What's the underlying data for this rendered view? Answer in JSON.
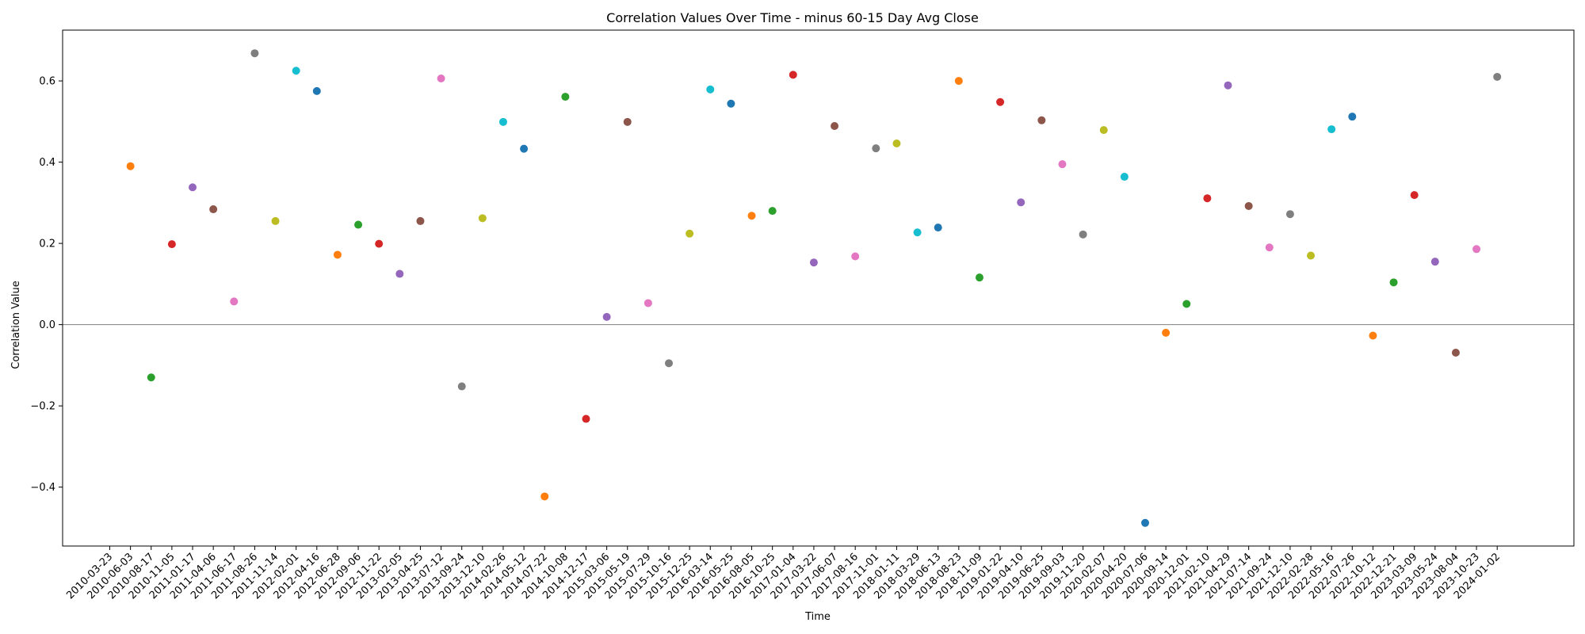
{
  "chart_data": {
    "type": "scatter",
    "title": "Correlation Values Over Time - minus 60-15 Day Avg Close",
    "xlabel": "Time",
    "ylabel": "Correlation Value",
    "ylim": [
      -0.545,
      0.725
    ],
    "yticks": [
      -0.4,
      -0.2,
      0.0,
      0.2,
      0.4,
      0.6
    ],
    "ytick_labels": [
      "−0.4",
      "−0.2",
      "0.0",
      "0.2",
      "0.4",
      "0.6"
    ],
    "grid": false,
    "legend": "none",
    "zero_line": true,
    "zero_line_color": "#808080",
    "palette": [
      "#1f77b4",
      "#ff7f0e",
      "#2ca02c",
      "#d62728",
      "#9467bd",
      "#8c564b",
      "#e377c2",
      "#7f7f7f",
      "#bcbd22",
      "#17becf"
    ],
    "x": [
      "2010-03-23",
      "2010-06-03",
      "2010-08-17",
      "2010-11-05",
      "2011-01-17",
      "2011-04-06",
      "2011-06-17",
      "2011-08-26",
      "2011-11-14",
      "2012-02-01",
      "2012-04-16",
      "2012-06-28",
      "2012-09-06",
      "2012-11-22",
      "2013-02-05",
      "2013-04-25",
      "2013-07-12",
      "2013-09-24",
      "2013-12-10",
      "2014-02-26",
      "2014-05-12",
      "2014-07-22",
      "2014-10-08",
      "2014-12-17",
      "2015-03-06",
      "2015-05-19",
      "2015-07-29",
      "2015-10-16",
      "2015-12-25",
      "2016-03-14",
      "2016-05-25",
      "2016-08-05",
      "2016-10-25",
      "2017-01-04",
      "2017-03-22",
      "2017-06-07",
      "2017-08-16",
      "2017-11-01",
      "2018-01-11",
      "2018-03-29",
      "2018-06-13",
      "2018-08-23",
      "2018-11-09",
      "2019-01-22",
      "2019-04-10",
      "2019-06-25",
      "2019-09-03",
      "2019-11-20",
      "2020-02-07",
      "2020-04-20",
      "2020-07-06",
      "2020-09-14",
      "2020-12-01",
      "2021-02-10",
      "2021-04-29",
      "2021-07-14",
      "2021-09-24",
      "2021-12-10",
      "2022-02-28",
      "2022-05-16",
      "2022-07-26",
      "2022-10-12",
      "2022-12-21",
      "2023-03-09",
      "2023-05-24",
      "2023-08-04",
      "2023-10-23",
      "2024-01-02"
    ],
    "values": [
      null,
      0.39,
      -0.13,
      0.198,
      0.338,
      0.284,
      0.057,
      0.668,
      0.255,
      0.625,
      0.575,
      0.172,
      0.246,
      0.199,
      0.125,
      0.255,
      0.606,
      -0.152,
      0.262,
      0.499,
      0.433,
      -0.423,
      0.561,
      -0.232,
      0.019,
      0.499,
      0.053,
      -0.095,
      0.224,
      0.579,
      0.544,
      0.268,
      0.28,
      0.615,
      0.153,
      0.489,
      0.168,
      0.434,
      0.446,
      0.227,
      0.239,
      0.6,
      0.116,
      0.548,
      0.301,
      0.503,
      0.395,
      0.222,
      0.479,
      0.364,
      -0.488,
      -0.02,
      0.051,
      0.311,
      0.589,
      0.292,
      0.19,
      0.272,
      0.17,
      0.481,
      0.512,
      -0.027,
      0.104,
      0.319,
      0.155,
      -0.069,
      0.186,
      0.61
    ]
  }
}
